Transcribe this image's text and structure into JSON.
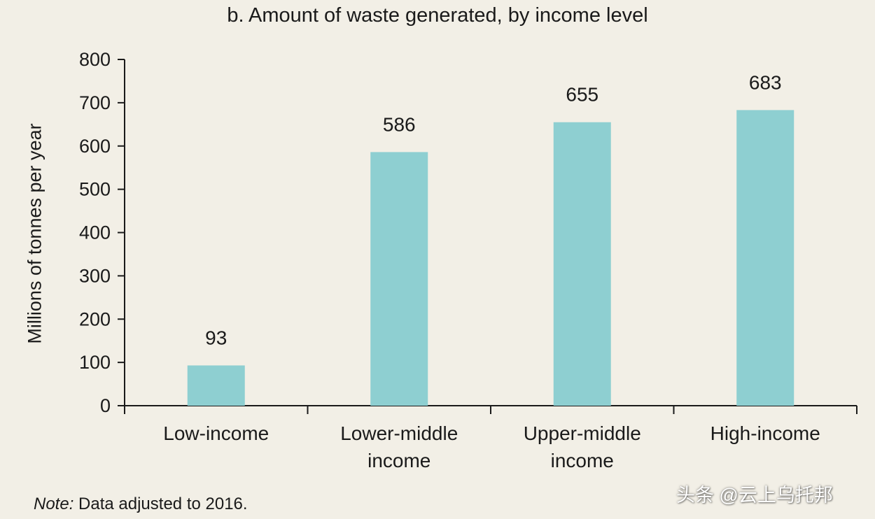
{
  "chart_data": {
    "type": "bar",
    "title": "b. Amount of waste generated, by income level",
    "ylabel": "Millions of tonnes per year",
    "xlabel": "",
    "categories": [
      [
        "Low-income"
      ],
      [
        "Lower-middle",
        "income"
      ],
      [
        "Upper-middle",
        "income"
      ],
      [
        "High-income"
      ]
    ],
    "values": [
      93,
      586,
      655,
      683
    ],
    "value_labels": [
      "93",
      "586",
      "655",
      "683"
    ],
    "ylim": [
      0,
      800
    ],
    "yticks": [
      0,
      100,
      200,
      300,
      400,
      500,
      600,
      700,
      800
    ],
    "grid": false,
    "bar_color": "#8ecfd1"
  },
  "note": {
    "lead": "Note:",
    "text": " Data adjusted to 2016."
  },
  "watermark": "头条 @云上乌托邦",
  "colors": {
    "background": "#f2efe6",
    "axis": "#1a1a1a"
  }
}
